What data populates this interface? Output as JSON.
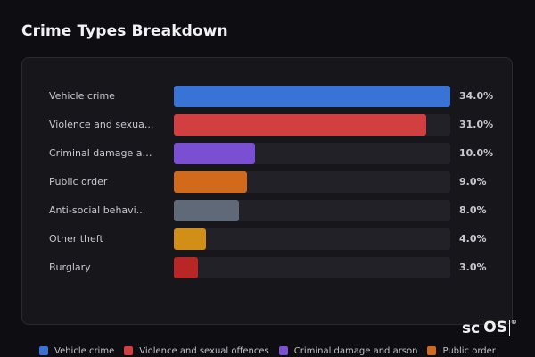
{
  "page": {
    "title": "Crime Types Breakdown"
  },
  "chart_data": {
    "type": "bar",
    "orientation": "horizontal",
    "title": "Crime Types Breakdown",
    "categories": [
      "Vehicle crime",
      "Violence and sexual offences",
      "Criminal damage and arson",
      "Public order",
      "Anti-social behaviour",
      "Other theft",
      "Burglary"
    ],
    "display_labels": [
      "Vehicle crime",
      "Violence and sexua...",
      "Criminal damage an...",
      "Public order",
      "Anti-social behavi...",
      "Other theft",
      "Burglary"
    ],
    "values": [
      34.0,
      31.0,
      10.0,
      9.0,
      8.0,
      4.0,
      3.0
    ],
    "value_labels": [
      "34.0%",
      "31.0%",
      "10.0%",
      "9.0%",
      "8.0%",
      "4.0%",
      "3.0%"
    ],
    "colors": [
      "#3a73d6",
      "#d23f41",
      "#7a4fd2",
      "#d26a1c",
      "#5f6978",
      "#d18f17",
      "#b82626"
    ],
    "xlim": [
      0,
      34
    ],
    "grid": false,
    "legend_position": "bottom"
  },
  "legend": {
    "items": [
      {
        "label": "Vehicle crime",
        "color": "#3a73d6"
      },
      {
        "label": "Violence and sexual offences",
        "color": "#d23f41"
      },
      {
        "label": "Criminal damage and arson",
        "color": "#7a4fd2"
      },
      {
        "label": "Public order",
        "color": "#d26a1c"
      }
    ]
  },
  "watermark": {
    "part1": "sc",
    "part2": "OS",
    "mark": "®"
  }
}
